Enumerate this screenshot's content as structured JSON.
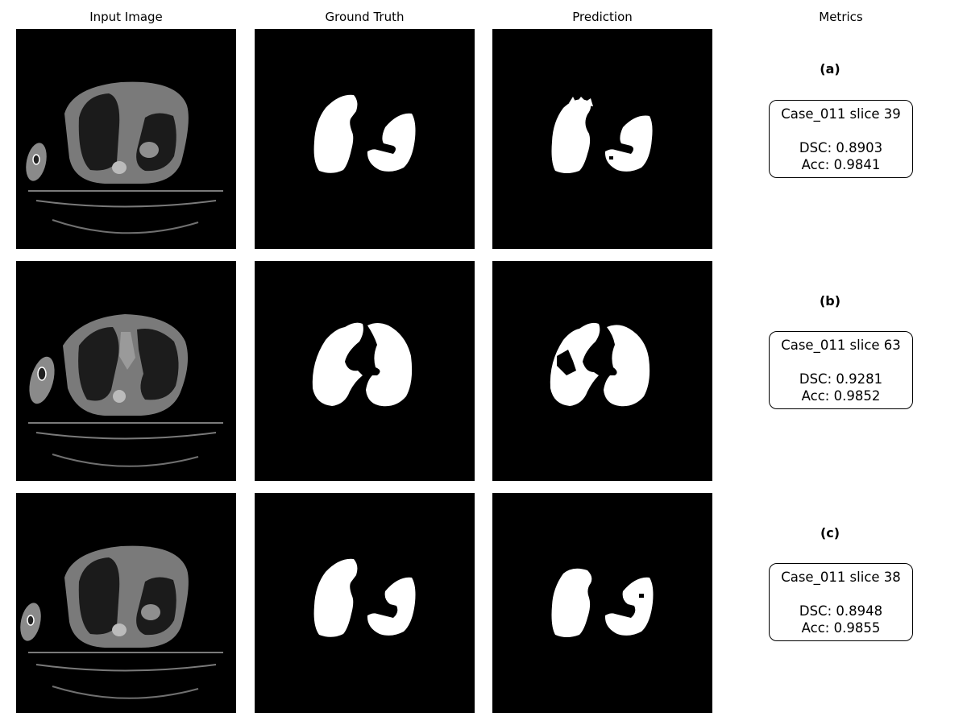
{
  "columns": {
    "input": "Input Image",
    "ground_truth": "Ground Truth",
    "prediction": "Prediction",
    "metrics": "Metrics"
  },
  "rows": [
    {
      "label": "(a)",
      "case": "Case_011 slice 39",
      "dsc": "DSC: 0.8903",
      "acc": "Acc: 0.9841"
    },
    {
      "label": "(b)",
      "case": "Case_011 slice 63",
      "dsc": "DSC: 0.9281",
      "acc": "Acc: 0.9852"
    },
    {
      "label": "(c)",
      "case": "Case_011 slice 38",
      "dsc": "DSC: 0.8948",
      "acc": "Acc: 0.9855"
    }
  ]
}
